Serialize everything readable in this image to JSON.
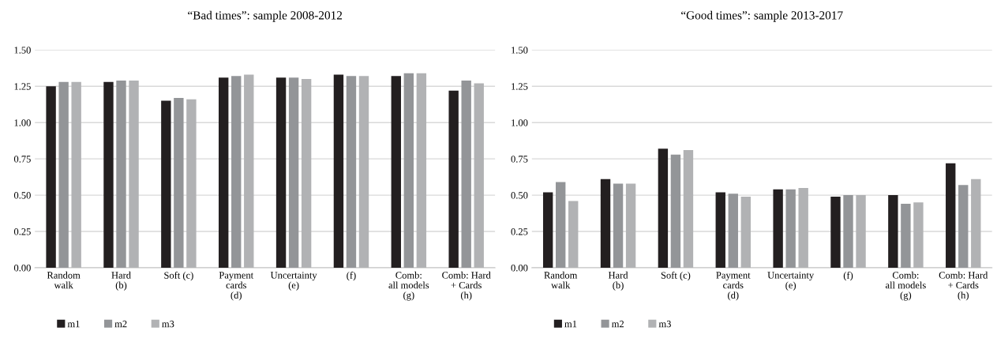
{
  "chart_data": [
    {
      "type": "bar",
      "title": "“Bad times”: sample 2008-2012",
      "categories": [
        "Random\nwalk",
        "Hard\n(b)",
        "Soft (c)",
        "Payment\ncards\n(d)",
        "Uncertainty\n(e)",
        "(f)",
        "Comb:\nall models\n(g)",
        "Comb: Hard\n+ Cards\n(h)"
      ],
      "series": [
        {
          "name": "m1",
          "color": "#231f20",
          "values": [
            1.25,
            1.28,
            1.15,
            1.31,
            1.31,
            1.33,
            1.32,
            1.22
          ]
        },
        {
          "name": "m2",
          "color": "#939598",
          "values": [
            1.28,
            1.29,
            1.17,
            1.32,
            1.31,
            1.32,
            1.34,
            1.29
          ]
        },
        {
          "name": "m3",
          "color": "#b1b2b4",
          "values": [
            1.28,
            1.29,
            1.16,
            1.33,
            1.3,
            1.32,
            1.34,
            1.27
          ]
        }
      ],
      "ylim": [
        0,
        1.5
      ],
      "yticks": [
        {
          "value": 0,
          "label": "0.00"
        },
        {
          "value": 0.25,
          "label": "0.25"
        },
        {
          "value": 0.5,
          "label": "0.50"
        },
        {
          "value": 0.75,
          "label": "0.75"
        },
        {
          "value": 1,
          "label": "1.00"
        },
        {
          "value": 1.25,
          "label": "1.25"
        },
        {
          "value": 1.5,
          "label": "1.50"
        }
      ],
      "grid": "y",
      "legend": "bottom"
    },
    {
      "type": "bar",
      "title": "“Good times”: sample 2013-2017",
      "categories": [
        "Random\nwalk",
        "Hard\n(b)",
        "Soft (c)",
        "Payment\ncards\n(d)",
        "Uncertainty\n(e)",
        "(f)",
        "Comb:\nall models\n(g)",
        "Comb: Hard\n+ Cards\n(h)"
      ],
      "series": [
        {
          "name": "m1",
          "color": "#231f20",
          "values": [
            0.52,
            0.61,
            0.82,
            0.52,
            0.54,
            0.49,
            0.5,
            0.72
          ]
        },
        {
          "name": "m2",
          "color": "#939598",
          "values": [
            0.59,
            0.58,
            0.78,
            0.51,
            0.54,
            0.5,
            0.44,
            0.57
          ]
        },
        {
          "name": "m3",
          "color": "#b1b2b4",
          "values": [
            0.46,
            0.58,
            0.81,
            0.49,
            0.55,
            0.5,
            0.45,
            0.61
          ]
        }
      ],
      "ylim": [
        0,
        1.5
      ],
      "yticks": [
        {
          "value": 0,
          "label": "0.00"
        },
        {
          "value": 0.25,
          "label": "0.25"
        },
        {
          "value": 0.5,
          "label": "0.50"
        },
        {
          "value": 0.75,
          "label": "0.75"
        },
        {
          "value": 1,
          "label": "1.00"
        },
        {
          "value": 1.25,
          "label": "1.25"
        },
        {
          "value": 1.5,
          "label": "1.50"
        }
      ],
      "grid": "y",
      "legend": "bottom"
    }
  ]
}
